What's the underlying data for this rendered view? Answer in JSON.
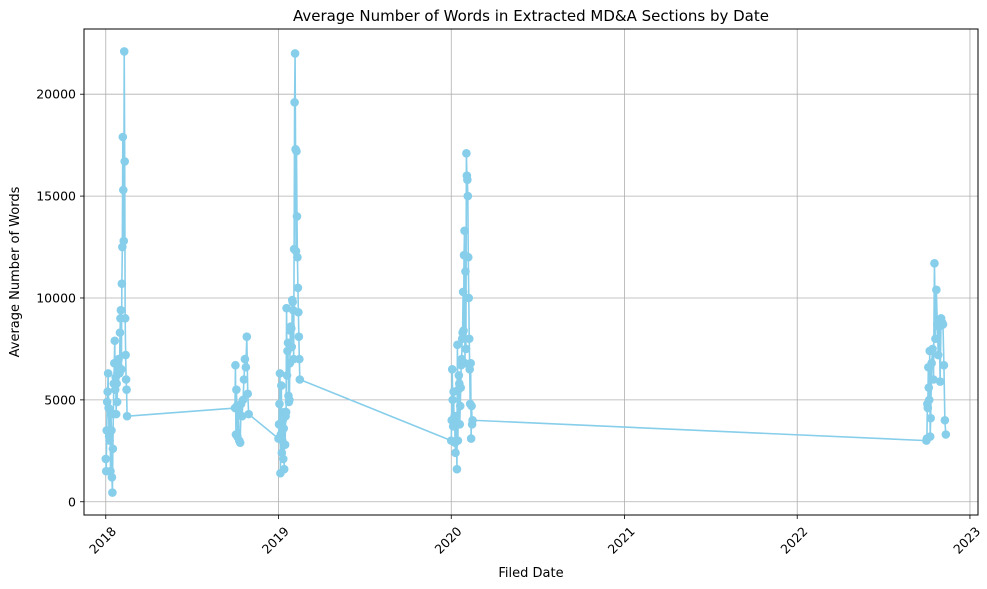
{
  "chart_data": {
    "type": "line",
    "title": "Average Number of Words in Extracted MD&A Sections by Date",
    "xlabel": "Filed Date",
    "ylabel": "Average Number of Words",
    "x_ticks": [
      "2018",
      "2019",
      "2020",
      "2021",
      "2022",
      "2023"
    ],
    "y_ticks": [
      "0",
      "5000",
      "10000",
      "15000",
      "20000"
    ],
    "xlim": [
      "2017-11-16",
      "2023-01-18"
    ],
    "ylim": [
      -650,
      23200
    ],
    "grid": true,
    "line_color": "#87ceeb",
    "marker": "circle",
    "series": [
      {
        "x": [
          "2018-01-01",
          "2018-01-02",
          "2018-01-03",
          "2018-01-04",
          "2018-01-05",
          "2018-01-06",
          "2018-01-07",
          "2018-01-08",
          "2018-01-09",
          "2018-01-10",
          "2018-01-11",
          "2018-01-12",
          "2018-01-13",
          "2018-01-14",
          "2018-01-15",
          "2018-01-16",
          "2018-01-17",
          "2018-01-18",
          "2018-01-19",
          "2018-01-20",
          "2018-01-21",
          "2018-01-22",
          "2018-01-23",
          "2018-01-24",
          "2018-01-25",
          "2018-01-26",
          "2018-01-27",
          "2018-01-28",
          "2018-01-29",
          "2018-01-30",
          "2018-01-31",
          "2018-02-01",
          "2018-02-02",
          "2018-02-03",
          "2018-02-04",
          "2018-02-05",
          "2018-02-06",
          "2018-02-07",
          "2018-02-08",
          "2018-02-09",
          "2018-02-10",
          "2018-02-11",
          "2018-02-12",
          "2018-02-13",
          "2018-02-14",
          "2018-02-15",
          "2018-10-01",
          "2018-10-02",
          "2018-10-03",
          "2018-10-04",
          "2018-10-05",
          "2018-10-06",
          "2018-10-08",
          "2018-10-10",
          "2018-10-12",
          "2018-10-14",
          "2018-10-16",
          "2018-10-18",
          "2018-10-20",
          "2018-10-22",
          "2018-10-24",
          "2018-10-26",
          "2018-10-28",
          "2018-10-30",
          "2019-01-01",
          "2019-01-02",
          "2019-01-03",
          "2019-01-04",
          "2019-01-05",
          "2019-01-06",
          "2019-01-07",
          "2019-01-08",
          "2019-01-09",
          "2019-01-10",
          "2019-01-11",
          "2019-01-12",
          "2019-01-13",
          "2019-01-14",
          "2019-01-15",
          "2019-01-16",
          "2019-01-17",
          "2019-01-18",
          "2019-01-19",
          "2019-01-20",
          "2019-01-21",
          "2019-01-22",
          "2019-01-23",
          "2019-01-24",
          "2019-01-25",
          "2019-01-26",
          "2019-01-27",
          "2019-01-28",
          "2019-01-29",
          "2019-01-30",
          "2019-01-31",
          "2019-02-01",
          "2019-02-02",
          "2019-02-03",
          "2019-02-04",
          "2019-02-05",
          "2019-02-06",
          "2019-02-07",
          "2019-02-08",
          "2019-02-09",
          "2019-02-10",
          "2019-02-11",
          "2019-02-12",
          "2019-02-13",
          "2019-02-14",
          "2019-02-15",
          "2020-01-01",
          "2020-01-02",
          "2020-01-03",
          "2020-01-04",
          "2020-01-05",
          "2020-01-06",
          "2020-01-07",
          "2020-01-08",
          "2020-01-09",
          "2020-01-10",
          "2020-01-11",
          "2020-01-12",
          "2020-01-13",
          "2020-01-14",
          "2020-01-15",
          "2020-01-16",
          "2020-01-17",
          "2020-01-18",
          "2020-01-19",
          "2020-01-20",
          "2020-01-21",
          "2020-01-22",
          "2020-01-23",
          "2020-01-24",
          "2020-01-25",
          "2020-01-26",
          "2020-01-27",
          "2020-01-28",
          "2020-01-29",
          "2020-01-30",
          "2020-01-31",
          "2020-02-01",
          "2020-02-02",
          "2020-02-03",
          "2020-02-04",
          "2020-02-05",
          "2020-02-06",
          "2020-02-07",
          "2020-02-08",
          "2020-02-09",
          "2020-02-10",
          "2020-02-11",
          "2020-02-12",
          "2020-02-13",
          "2020-02-14",
          "2020-02-15",
          "2022-10-01",
          "2022-10-02",
          "2022-10-03",
          "2022-10-04",
          "2022-10-05",
          "2022-10-06",
          "2022-10-07",
          "2022-10-08",
          "2022-10-09",
          "2022-10-10",
          "2022-10-12",
          "2022-10-14",
          "2022-10-16",
          "2022-10-18",
          "2022-10-20",
          "2022-10-22",
          "2022-10-24",
          "2022-10-26",
          "2022-10-28",
          "2022-10-30",
          "2022-11-01",
          "2022-11-03",
          "2022-11-05",
          "2022-11-07",
          "2022-11-09",
          "2022-11-11"
        ],
        "values": [
          2100,
          1500,
          3500,
          4900,
          5400,
          6300,
          4600,
          3200,
          3000,
          4500,
          1500,
          4300,
          3500,
          1200,
          450,
          2600,
          4300,
          5800,
          6800,
          7900,
          5500,
          6100,
          4300,
          5800,
          4900,
          6300,
          6900,
          7000,
          6600,
          6300,
          8300,
          9000,
          9400,
          6500,
          10700,
          12500,
          17900,
          15300,
          12800,
          22100,
          16700,
          9000,
          7200,
          6000,
          5500,
          4200,
          4600,
          6700,
          3300,
          5500,
          4700,
          3200,
          4500,
          3000,
          2900,
          4800,
          4200,
          5000,
          6000,
          7000,
          6600,
          8100,
          5300,
          4300,
          3100,
          3800,
          4800,
          6300,
          1400,
          3300,
          5700,
          2400,
          3000,
          4000,
          2100,
          3600,
          1600,
          4400,
          2800,
          4200,
          4400,
          9500,
          6200,
          7400,
          7800,
          5200,
          4900,
          5000,
          6800,
          8400,
          8600,
          8500,
          7600,
          9900,
          9800,
          9400,
          7000,
          12400,
          19600,
          22000,
          17300,
          12300,
          17200,
          14000,
          12000,
          10500,
          9300,
          8100,
          7000,
          6000,
          3000,
          4000,
          6500,
          5000,
          3700,
          5400,
          3700,
          4200,
          2900,
          2400,
          4200,
          3800,
          1600,
          7700,
          3000,
          5500,
          6200,
          5800,
          3800,
          4700,
          5600,
          6700,
          7000,
          8000,
          8300,
          10300,
          8400,
          12100,
          13300,
          6800,
          11300,
          7500,
          17100,
          16000,
          15800,
          15000,
          12000,
          10000,
          8000,
          6500,
          4800,
          6800,
          3100,
          4700,
          3800,
          4000,
          3000,
          3100,
          4800,
          4600,
          6600,
          5600,
          5000,
          7400,
          3200,
          4100,
          6800,
          7500,
          6000,
          11700,
          8000,
          10400,
          8700,
          7200,
          8600,
          5900,
          9000,
          8800,
          8700,
          6700,
          4000,
          3300
        ]
      }
    ]
  }
}
